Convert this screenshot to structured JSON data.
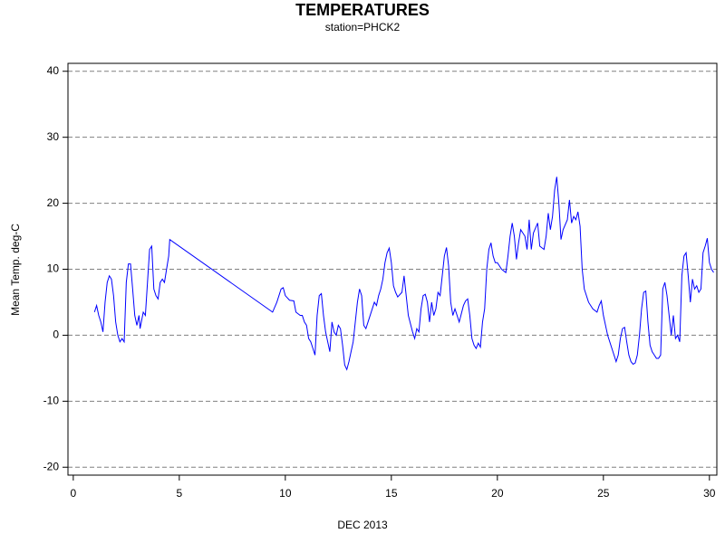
{
  "chart_data": {
    "type": "line",
    "title": "TEMPERATURES",
    "subtitle": "station=PHCK2",
    "xlabel": "DEC 2013",
    "ylabel": "Mean Temp. deg-C",
    "color": "#0000ff",
    "grid": true,
    "xlim": [
      -0.25,
      30.35
    ],
    "xticks": [
      0,
      5,
      10,
      15,
      20,
      25,
      30
    ],
    "ylim": [
      -21.2,
      41.2
    ],
    "yticks": [
      -20,
      -10,
      0,
      10,
      20,
      30,
      40
    ],
    "x": [
      1.0,
      1.1,
      1.2,
      1.3,
      1.4,
      1.5,
      1.6,
      1.7,
      1.8,
      1.9,
      2.0,
      2.1,
      2.2,
      2.3,
      2.4,
      2.5,
      2.6,
      2.7,
      2.8,
      2.9,
      3.0,
      3.1,
      3.15,
      3.3,
      3.4,
      3.5,
      3.6,
      3.7,
      3.8,
      3.9,
      4.0,
      4.1,
      4.2,
      4.3,
      4.4,
      4.5,
      4.55,
      9.4,
      9.6,
      9.8,
      9.9,
      10.0,
      10.2,
      10.4,
      10.5,
      10.7,
      10.8,
      10.9,
      11.0,
      11.1,
      11.2,
      11.3,
      11.4,
      11.5,
      11.6,
      11.7,
      11.8,
      11.9,
      12.0,
      12.1,
      12.2,
      12.3,
      12.4,
      12.5,
      12.6,
      12.7,
      12.8,
      12.9,
      13.0,
      13.1,
      13.2,
      13.3,
      13.4,
      13.5,
      13.6,
      13.7,
      13.8,
      13.9,
      14.0,
      14.2,
      14.3,
      14.4,
      14.5,
      14.6,
      14.7,
      14.8,
      14.9,
      15.0,
      15.1,
      15.2,
      15.3,
      15.5,
      15.6,
      15.7,
      15.8,
      16.0,
      16.1,
      16.2,
      16.3,
      16.4,
      16.5,
      16.6,
      16.7,
      16.8,
      16.9,
      17.0,
      17.1,
      17.2,
      17.3,
      17.4,
      17.5,
      17.6,
      17.7,
      17.8,
      17.9,
      18.0,
      18.2,
      18.4,
      18.5,
      18.6,
      18.7,
      18.8,
      18.9,
      19.0,
      19.1,
      19.2,
      19.3,
      19.4,
      19.5,
      19.6,
      19.7,
      19.8,
      19.9,
      20.0,
      20.2,
      20.4,
      20.5,
      20.6,
      20.7,
      20.8,
      20.9,
      21.0,
      21.1,
      21.3,
      21.4,
      21.5,
      21.6,
      21.7,
      21.9,
      22.0,
      22.2,
      22.3,
      22.4,
      22.5,
      22.6,
      22.7,
      22.8,
      22.9,
      23.0,
      23.1,
      23.3,
      23.4,
      23.5,
      23.6,
      23.7,
      23.8,
      23.9,
      24.0,
      24.1,
      24.3,
      24.5,
      24.7,
      24.8,
      24.9,
      25.0,
      25.2,
      25.4,
      25.6,
      25.7,
      25.8,
      25.9,
      26.0,
      26.1,
      26.2,
      26.3,
      26.4,
      26.5,
      26.6,
      26.7,
      26.8,
      26.9,
      27.0,
      27.1,
      27.2,
      27.3,
      27.4,
      27.5,
      27.6,
      27.7,
      27.8,
      27.9,
      28.0,
      28.1,
      28.2,
      28.3,
      28.4,
      28.5,
      28.6,
      28.7,
      28.8,
      28.9,
      29.0,
      29.1,
      29.2,
      29.3,
      29.4,
      29.5,
      29.6,
      29.7,
      29.8,
      29.9,
      30.0,
      30.1,
      30.2
    ],
    "values": [
      3.5,
      4.5,
      3,
      2,
      0.5,
      5,
      8,
      9,
      8.5,
      6,
      2,
      0,
      -1,
      -0.5,
      -1,
      8,
      10.8,
      10.8,
      7,
      3,
      1.5,
      3,
      1,
      3.5,
      3,
      8,
      13,
      13.5,
      7,
      6,
      5.5,
      8,
      8.5,
      8,
      10,
      12,
      14.5,
      3.5,
      5,
      7,
      7.2,
      6,
      5.3,
      5.2,
      3.5,
      3,
      3,
      2,
      1.5,
      -0.5,
      -1,
      -2,
      -3,
      3,
      6,
      6.3,
      3,
      0.5,
      -1,
      -2.5,
      2,
      0.5,
      0,
      1.5,
      1,
      -1.5,
      -4.5,
      -5.2,
      -4,
      -2.5,
      -1,
      2,
      5,
      7,
      6,
      1.5,
      1,
      2,
      3,
      5,
      4.5,
      6,
      7,
      8.5,
      11,
      12.5,
      13.2,
      11,
      7.5,
      6.5,
      5.8,
      6.5,
      9,
      6,
      3,
      0.5,
      -0.5,
      1,
      0.5,
      4,
      6,
      6.2,
      5,
      2,
      5,
      3,
      4,
      6.5,
      6,
      9,
      12,
      13.3,
      10.5,
      5,
      3,
      4,
      2,
      4.5,
      5.2,
      5.5,
      3,
      -0.5,
      -1.5,
      -2,
      -1.2,
      -1.8,
      2,
      4,
      10,
      13,
      14,
      12,
      11,
      11,
      10,
      9.5,
      12,
      15,
      17,
      15,
      11.5,
      14,
      16,
      15,
      13,
      17.5,
      13,
      15.5,
      17,
      13.5,
      13,
      15,
      18.5,
      16,
      18,
      22,
      24,
      20,
      14.5,
      16,
      17.5,
      20.5,
      17,
      18,
      17.5,
      18.7,
      16.5,
      10,
      7,
      5,
      4,
      3.5,
      4.5,
      5.2,
      3,
      0,
      -2,
      -4,
      -3,
      -0.5,
      1,
      1.2,
      -1,
      -3,
      -4,
      -4.4,
      -4.2,
      -3,
      0,
      4,
      6.5,
      6.7,
      2,
      -1.5,
      -2.5,
      -3,
      -3.5,
      -3.5,
      -3,
      7,
      8,
      6,
      3,
      0,
      3,
      -0.5,
      0,
      -1,
      9,
      12,
      12.5,
      9,
      5,
      8.5,
      7,
      7.5,
      6.5,
      7,
      12.5,
      13.5,
      14.7,
      11,
      10,
      9.5
    ]
  }
}
